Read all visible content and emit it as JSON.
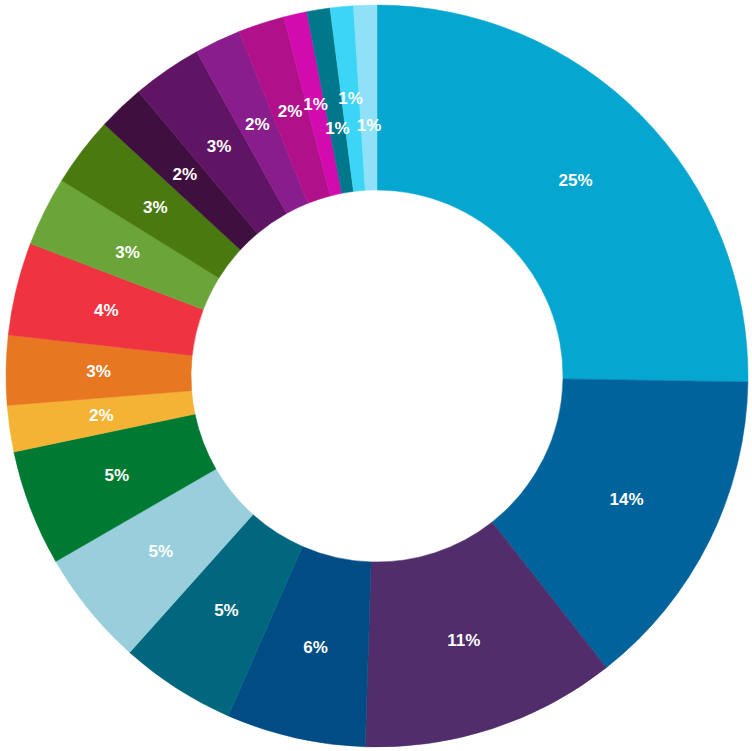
{
  "chart_data": {
    "type": "donut",
    "values": [
      25,
      14,
      11,
      6,
      5,
      5,
      5,
      2,
      3,
      4,
      3,
      3,
      2,
      3,
      2,
      2,
      1,
      1,
      1,
      1
    ],
    "value_labels": [
      "25%",
      "14%",
      "11%",
      "6%",
      "5%",
      "5%",
      "5%",
      "2%",
      "3%",
      "4%",
      "3%",
      "3%",
      "2%",
      "3%",
      "2%",
      "2%",
      "1%",
      "1%",
      "1%",
      "1%"
    ],
    "colors": [
      "#05a6d0",
      "#00639c",
      "#512d6b",
      "#004c84",
      "#00677f",
      "#99cfdc",
      "#007a33",
      "#f5b335",
      "#e87722",
      "#ef3340",
      "#6ba539",
      "#4a7a0f",
      "#3f0f3f",
      "#5f1563",
      "#8a1d8c",
      "#b0108a",
      "#d20bae",
      "#00778b",
      "#3dd5f5",
      "#8fe1f7"
    ],
    "data_labels": true
  }
}
